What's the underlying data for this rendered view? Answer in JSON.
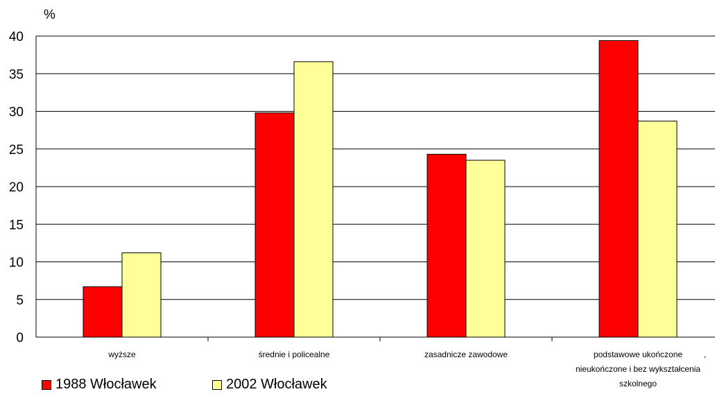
{
  "chart_data": {
    "type": "bar",
    "ylabel": "%",
    "ylim": [
      0,
      40
    ],
    "yticks": [
      "0",
      "5",
      "10",
      "15",
      "20",
      "25",
      "30",
      "35",
      "40"
    ],
    "categories": [
      [
        "wyższe"
      ],
      [
        "średnie i policealne"
      ],
      [
        "zasadnicze zawodowe"
      ],
      [
        "podstawowe ukończone",
        "nieukończone i bez wykształcenia",
        "szkolnego"
      ]
    ],
    "stray_mark": ",",
    "grid": true,
    "legend_position": "bottom-left",
    "series": [
      {
        "name": "1988  Włocławek",
        "color": "#ff0000",
        "values": [
          6.7,
          29.8,
          24.3,
          39.4
        ]
      },
      {
        "name": "2002  Włocławek",
        "color": "#ffff99",
        "values": [
          11.2,
          36.6,
          23.5,
          28.7
        ]
      }
    ]
  }
}
